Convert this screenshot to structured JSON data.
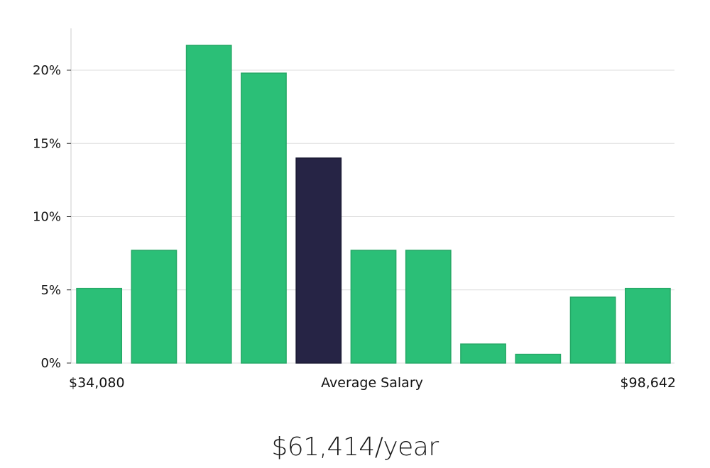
{
  "chart_data": {
    "type": "bar",
    "title": "",
    "xlabel": "Average Salary",
    "ylabel": "",
    "ylim": [
      0,
      23
    ],
    "yticks": [
      0,
      5,
      10,
      15,
      20
    ],
    "ytick_suffix": "%",
    "grid": true,
    "x_range_labels": {
      "min": "$34,080",
      "center": "Average Salary",
      "max": "$98,642"
    },
    "values": [
      5.1,
      7.7,
      21.7,
      19.8,
      14.0,
      7.7,
      7.7,
      1.3,
      0.6,
      4.5,
      5.1
    ],
    "highlight_index": 4,
    "colors": {
      "bar": "#2bbf77",
      "highlight": "#262445",
      "grid": "#dddddd",
      "axis": "#cccccc"
    }
  },
  "summary": {
    "average_salary": "$61,414/year"
  }
}
